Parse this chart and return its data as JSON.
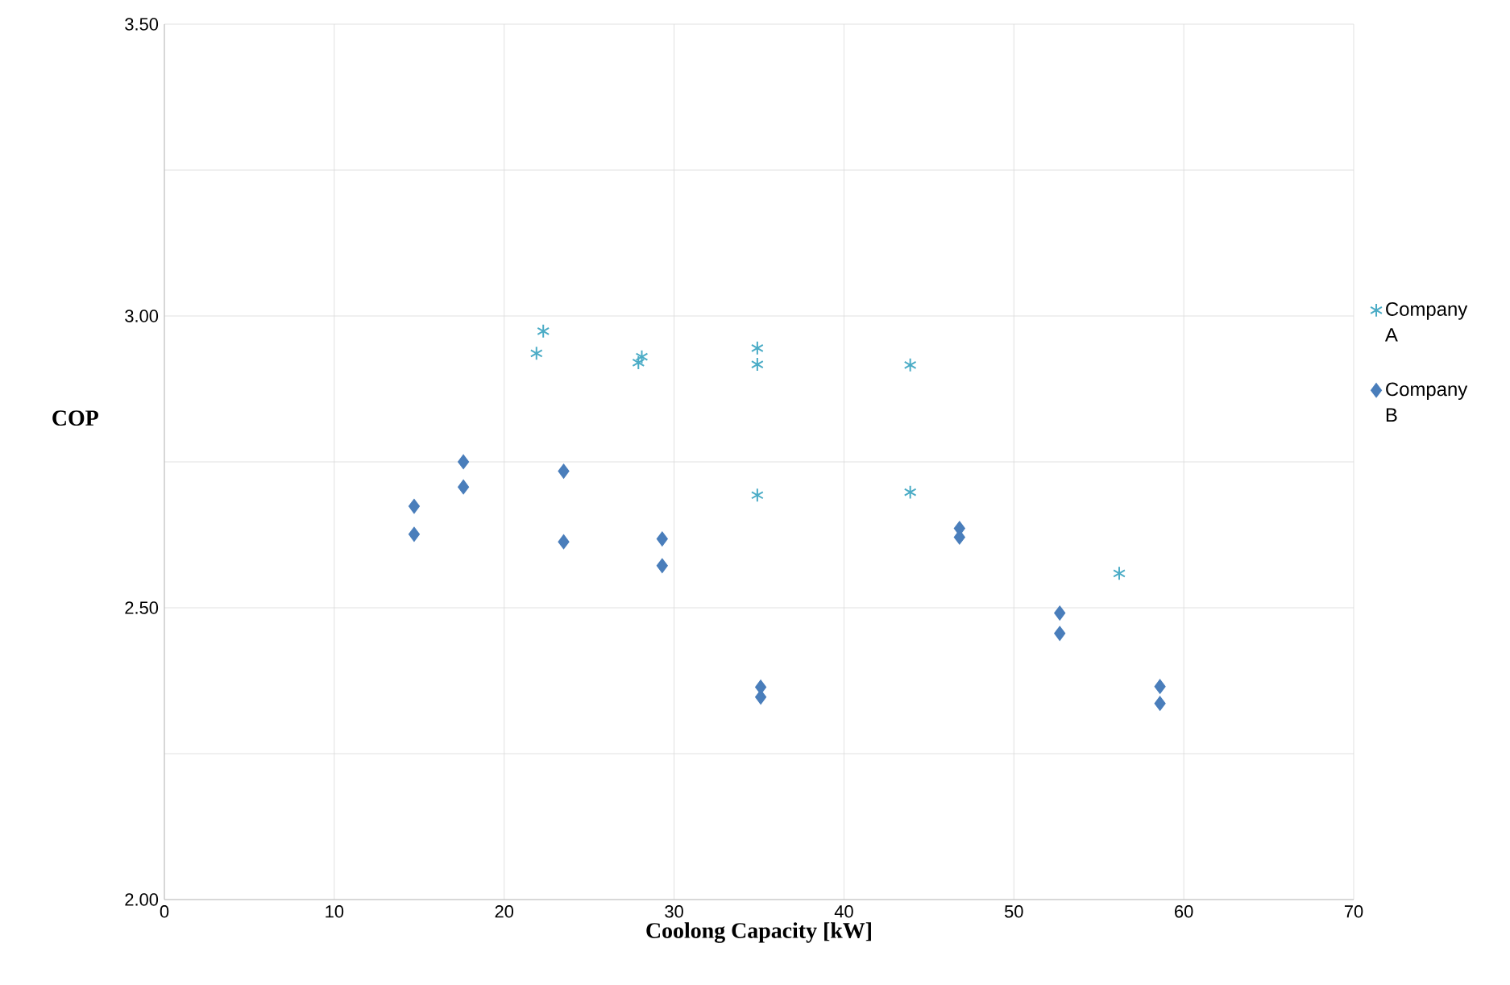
{
  "chart_data": {
    "type": "scatter",
    "xlabel": "Coolong Capacity [kW]",
    "ylabel": "COP",
    "xlim": [
      0,
      70
    ],
    "xticks": [
      0,
      10,
      20,
      30,
      40,
      50,
      60,
      70
    ],
    "ylim": [
      2.0,
      3.5
    ],
    "yticks": [
      {
        "value": 2.0,
        "label": "2.00"
      },
      {
        "value": 2.25,
        "label": null
      },
      {
        "value": 2.5,
        "label": "2.50"
      },
      {
        "value": 2.75,
        "label": null
      },
      {
        "value": 3.0,
        "label": "3.00"
      },
      {
        "value": 3.25,
        "label": null
      },
      {
        "value": 3.5,
        "label": "3.50"
      }
    ],
    "grid": true,
    "legend": "right",
    "series": [
      {
        "name": "Company A",
        "color": "#4bacc6",
        "marker": "cross",
        "x": [
          21.9,
          22.3,
          27.9,
          28.1,
          34.9,
          34.9,
          43.9,
          34.9,
          43.9,
          56.2
        ],
        "values": [
          2.936,
          2.974,
          2.92,
          2.93,
          2.945,
          2.917,
          2.916,
          2.693,
          2.698,
          2.559
        ]
      },
      {
        "name": "Company B",
        "color": "#4a7ebb",
        "marker": "diamond",
        "x": [
          14.7,
          14.7,
          17.6,
          17.6,
          23.5,
          23.5,
          29.3,
          29.3,
          35.1,
          35.1,
          46.8,
          46.8,
          52.7,
          52.7,
          58.6,
          58.6
        ],
        "values": [
          2.674,
          2.626,
          2.75,
          2.707,
          2.734,
          2.613,
          2.618,
          2.572,
          2.364,
          2.347,
          2.636,
          2.621,
          2.491,
          2.456,
          2.365,
          2.336
        ]
      }
    ]
  }
}
